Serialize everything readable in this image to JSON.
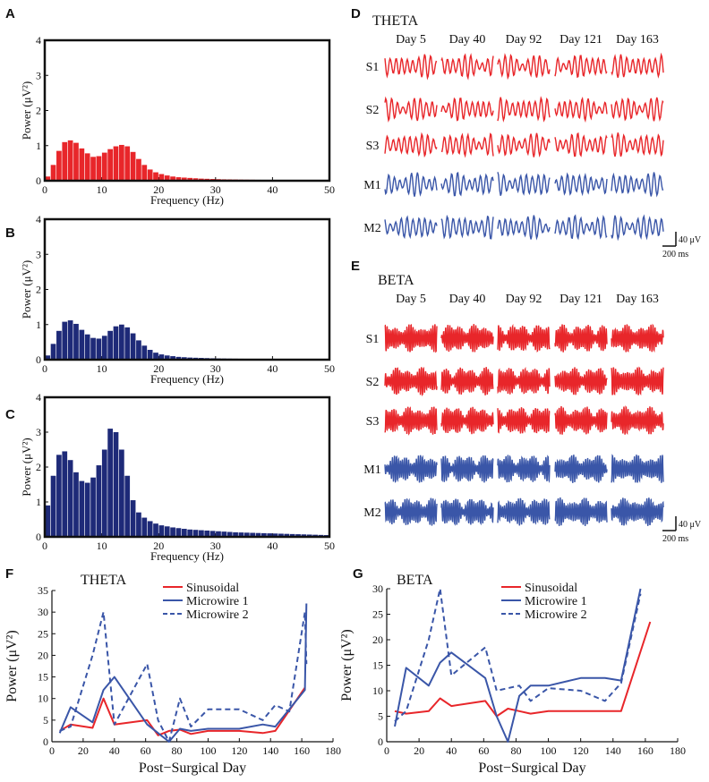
{
  "colors": {
    "red": "#e8262a",
    "blue": "#3a56a8",
    "navy": "#1e2a78",
    "black": "#111111"
  },
  "panels": {
    "A": {
      "letter": "A"
    },
    "B": {
      "letter": "B"
    },
    "C": {
      "letter": "C"
    },
    "D": {
      "letter": "D",
      "band": "THETA"
    },
    "E": {
      "letter": "E",
      "band": "BETA"
    },
    "F": {
      "letter": "F"
    },
    "G": {
      "letter": "G"
    }
  },
  "traces": {
    "days": [
      "Day 5",
      "Day 40",
      "Day 92",
      "Day 121",
      "Day 163"
    ],
    "rows": [
      {
        "label": "S1",
        "type": "Sinusoidal"
      },
      {
        "label": "S2",
        "type": "Sinusoidal"
      },
      {
        "label": "S3",
        "type": "Sinusoidal"
      },
      {
        "label": "M1",
        "type": "Microwire"
      },
      {
        "label": "M2",
        "type": "Microwire"
      }
    ],
    "scale_amp": "40 μV",
    "scale_time": "200 ms"
  },
  "chart_data": [
    {
      "id": "A",
      "type": "bar",
      "xlabel": "Frequency (Hz)",
      "ylabel": "Power (μV²)",
      "xlim": [
        0,
        50
      ],
      "ylim": [
        0,
        4
      ],
      "xticks": [
        0,
        10,
        20,
        30,
        40,
        50
      ],
      "yticks": [
        0,
        1,
        2,
        3,
        4
      ],
      "bar_width_hz": 0.9,
      "color_key": "red",
      "values": [
        0.12,
        0.45,
        0.85,
        1.1,
        1.15,
        1.08,
        0.92,
        0.78,
        0.68,
        0.7,
        0.8,
        0.9,
        0.98,
        1.02,
        0.98,
        0.82,
        0.62,
        0.45,
        0.32,
        0.24,
        0.19,
        0.15,
        0.12,
        0.1,
        0.09,
        0.08,
        0.07,
        0.06,
        0.055,
        0.05,
        0.045,
        0.04,
        0.038,
        0.035,
        0.032,
        0.03,
        0.028,
        0.026,
        0.024,
        0.022,
        0.02,
        0.02,
        0.018,
        0.017,
        0.016,
        0.015,
        0.014,
        0.013,
        0.012,
        0.011
      ]
    },
    {
      "id": "B",
      "type": "bar",
      "xlabel": "Frequency (Hz)",
      "ylabel": "Power (μV²)",
      "xlim": [
        0,
        50
      ],
      "ylim": [
        0,
        4
      ],
      "xticks": [
        0,
        10,
        20,
        30,
        40,
        50
      ],
      "yticks": [
        0,
        1,
        2,
        3,
        4
      ],
      "bar_width_hz": 0.9,
      "color_key": "navy",
      "values": [
        0.12,
        0.45,
        0.82,
        1.08,
        1.12,
        1.02,
        0.85,
        0.72,
        0.62,
        0.6,
        0.68,
        0.82,
        0.95,
        1.0,
        0.92,
        0.75,
        0.55,
        0.4,
        0.28,
        0.2,
        0.15,
        0.12,
        0.1,
        0.08,
        0.07,
        0.06,
        0.055,
        0.05,
        0.045,
        0.04,
        0.036,
        0.033,
        0.03,
        0.028,
        0.026,
        0.024,
        0.022,
        0.02,
        0.019,
        0.018,
        0.017,
        0.016,
        0.015,
        0.014,
        0.013,
        0.012,
        0.011,
        0.01,
        0.01,
        0.01
      ]
    },
    {
      "id": "C",
      "type": "bar",
      "xlabel": "Frequency (Hz)",
      "ylabel": "Power (μV²)",
      "xlim": [
        0,
        50
      ],
      "ylim": [
        0,
        4
      ],
      "xticks": [
        0,
        10,
        20,
        30,
        40,
        50
      ],
      "yticks": [
        0,
        1,
        2,
        3,
        4
      ],
      "bar_width_hz": 0.9,
      "color_key": "navy",
      "values": [
        0.9,
        1.75,
        2.35,
        2.45,
        2.2,
        1.85,
        1.6,
        1.55,
        1.7,
        2.05,
        2.5,
        3.1,
        3.0,
        2.5,
        1.75,
        1.05,
        0.7,
        0.55,
        0.45,
        0.38,
        0.33,
        0.3,
        0.27,
        0.25,
        0.23,
        0.21,
        0.2,
        0.19,
        0.18,
        0.17,
        0.16,
        0.15,
        0.14,
        0.13,
        0.125,
        0.12,
        0.115,
        0.11,
        0.105,
        0.1,
        0.095,
        0.09,
        0.085,
        0.08,
        0.075,
        0.07,
        0.065,
        0.06,
        0.055,
        0.05
      ]
    },
    {
      "id": "F",
      "type": "line",
      "title": "THETA",
      "xlabel": "Post−Surgical Day",
      "ylabel": "Power (μV²)",
      "xlim": [
        0,
        180
      ],
      "ylim": [
        0,
        35
      ],
      "xticks": [
        0,
        20,
        40,
        60,
        80,
        100,
        120,
        140,
        160,
        180
      ],
      "yticks": [
        0,
        5,
        10,
        15,
        20,
        25,
        30,
        35
      ],
      "series": [
        {
          "name": "Sinusoidal",
          "style": "solid",
          "color_key": "red",
          "x": [
            5,
            12,
            26,
            33,
            40,
            61,
            68,
            75,
            82,
            89,
            100,
            120,
            135,
            143,
            162
          ],
          "y": [
            2.5,
            4,
            3.2,
            10,
            4,
            5,
            1.5,
            2.5,
            2.8,
            1.8,
            2.5,
            2.5,
            2,
            2.5,
            12.5
          ]
        },
        {
          "name": "Microwire 1",
          "style": "solid",
          "color_key": "blue",
          "x": [
            5,
            12,
            26,
            33,
            40,
            61,
            68,
            75,
            82,
            89,
            100,
            120,
            135,
            143,
            162,
            163
          ],
          "y": [
            2,
            8,
            4.5,
            12,
            15,
            4,
            2,
            0,
            3,
            2.5,
            3,
            3,
            4,
            3.5,
            12,
            32
          ]
        },
        {
          "name": "Microwire 2",
          "style": "dashed",
          "color_key": "blue",
          "x": [
            5,
            12,
            26,
            33,
            40,
            61,
            68,
            75,
            82,
            89,
            100,
            120,
            135,
            143,
            152,
            162,
            163
          ],
          "y": [
            2.5,
            3.5,
            20,
            30,
            4,
            18,
            5,
            0,
            10,
            3.5,
            7.5,
            7.5,
            5,
            8.5,
            7,
            30,
            18
          ]
        }
      ]
    },
    {
      "id": "G",
      "type": "line",
      "title": "BETA",
      "xlabel": "Post−Surgical Day",
      "ylabel": "Power (μV²)",
      "xlim": [
        0,
        180
      ],
      "ylim": [
        0,
        30
      ],
      "xticks": [
        0,
        20,
        40,
        60,
        80,
        100,
        120,
        140,
        160,
        180
      ],
      "yticks": [
        0,
        5,
        10,
        15,
        20,
        25,
        30
      ],
      "series": [
        {
          "name": "Sinusoidal",
          "style": "solid",
          "color_key": "red",
          "x": [
            5,
            12,
            26,
            33,
            40,
            61,
            68,
            75,
            82,
            89,
            100,
            120,
            135,
            145,
            163
          ],
          "y": [
            6,
            5.5,
            6,
            8.5,
            7,
            8,
            5,
            6.5,
            6,
            5.5,
            6,
            6,
            6,
            6,
            23.5
          ]
        },
        {
          "name": "Microwire 1",
          "style": "solid",
          "color_key": "blue",
          "x": [
            5,
            12,
            26,
            33,
            40,
            61,
            68,
            75,
            82,
            89,
            100,
            120,
            135,
            145,
            157
          ],
          "y": [
            3,
            14.5,
            11,
            15.5,
            17.5,
            12.5,
            5,
            0,
            9,
            11,
            11,
            12.5,
            12.5,
            12,
            30
          ]
        },
        {
          "name": "Microwire 2",
          "style": "dashed",
          "color_key": "blue",
          "x": [
            5,
            12,
            26,
            33,
            40,
            61,
            68,
            75,
            82,
            89,
            100,
            120,
            135,
            145,
            157
          ],
          "y": [
            4,
            6,
            20,
            30,
            13,
            18.5,
            10,
            10.5,
            11,
            8,
            10.5,
            10,
            8,
            11.5,
            29
          ]
        }
      ]
    }
  ]
}
